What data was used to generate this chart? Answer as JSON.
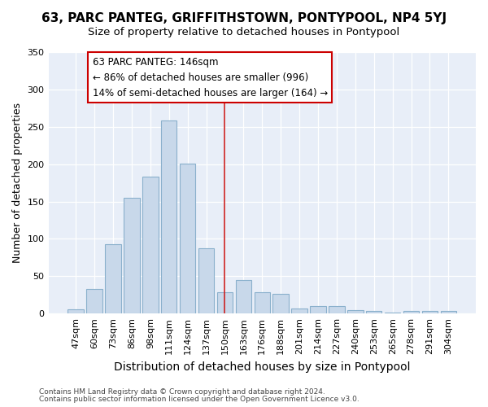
{
  "title1": "63, PARC PANTEG, GRIFFITHSTOWN, PONTYPOOL, NP4 5YJ",
  "title2": "Size of property relative to detached houses in Pontypool",
  "xlabel": "Distribution of detached houses by size in Pontypool",
  "ylabel": "Number of detached properties",
  "categories": [
    "47sqm",
    "60sqm",
    "73sqm",
    "86sqm",
    "98sqm",
    "111sqm",
    "124sqm",
    "137sqm",
    "150sqm",
    "163sqm",
    "176sqm",
    "188sqm",
    "201sqm",
    "214sqm",
    "227sqm",
    "240sqm",
    "253sqm",
    "265sqm",
    "278sqm",
    "291sqm",
    "304sqm"
  ],
  "values": [
    6,
    33,
    93,
    155,
    183,
    258,
    201,
    87,
    28,
    45,
    29,
    26,
    7,
    10,
    10,
    5,
    3,
    1,
    4,
    4,
    3
  ],
  "bar_color": "#c8d8ea",
  "bar_edge_color": "#8ab0cc",
  "bg_color": "#ffffff",
  "plot_bg_color": "#e8eef8",
  "vline_index": 8,
  "vline_color": "#cc2222",
  "annotation_line1": "63 PARC PANTEG: 146sqm",
  "annotation_line2": "← 86% of detached houses are smaller (996)",
  "annotation_line3": "14% of semi-detached houses are larger (164) →",
  "annotation_box_ec": "#cc0000",
  "annotation_box_fc": "#ffffff",
  "footer1": "Contains HM Land Registry data © Crown copyright and database right 2024.",
  "footer2": "Contains public sector information licensed under the Open Government Licence v3.0.",
  "ylim": [
    0,
    350
  ],
  "yticks": [
    0,
    50,
    100,
    150,
    200,
    250,
    300,
    350
  ],
  "grid_color": "#ffffff",
  "title1_fontsize": 11,
  "title2_fontsize": 9.5,
  "ylabel_fontsize": 9,
  "xlabel_fontsize": 10,
  "tick_fontsize": 8,
  "footer_fontsize": 6.5,
  "ann_fontsize": 8.5
}
